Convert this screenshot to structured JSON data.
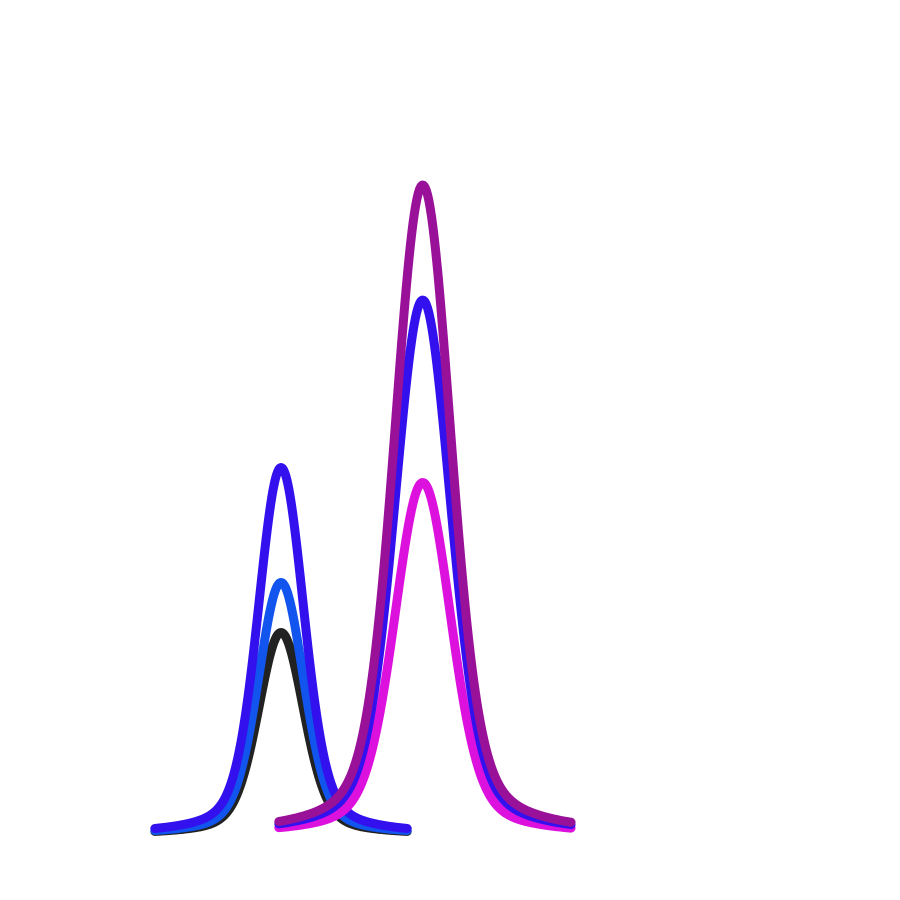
{
  "chart_data": {
    "type": "line",
    "title": "",
    "xlabel": "",
    "ylabel": "",
    "grid": false,
    "axes_visible": false,
    "xlim": [
      0,
      18
    ],
    "ylim": [
      0,
      1.3
    ],
    "series": [
      {
        "key": "left_black",
        "color": "#222222",
        "center": 5.15,
        "amplitude": 0.405,
        "width": 0.5,
        "x_range": [
          2.3,
          8.0
        ]
      },
      {
        "key": "left_blue",
        "color": "#1155ee",
        "center": 5.15,
        "amplitude": 0.505,
        "width": 0.5,
        "x_range": [
          2.3,
          8.0
        ]
      },
      {
        "key": "left_violet",
        "color": "#3311ee",
        "center": 5.15,
        "amplitude": 0.735,
        "width": 0.5,
        "x_range": [
          2.3,
          8.0
        ]
      },
      {
        "key": "right_magenta",
        "color": "#dd11dd",
        "center": 8.35,
        "amplitude": 0.705,
        "width": 0.62,
        "x_range": [
          5.1,
          11.7
        ]
      },
      {
        "key": "right_blue",
        "color": "#3311ee",
        "center": 8.35,
        "amplitude": 1.07,
        "width": 0.62,
        "x_range": [
          5.1,
          11.7
        ]
      },
      {
        "key": "right_purple",
        "color": "#991199",
        "center": 8.35,
        "amplitude": 1.3,
        "width": 0.62,
        "x_range": [
          5.1,
          11.7
        ]
      }
    ]
  }
}
